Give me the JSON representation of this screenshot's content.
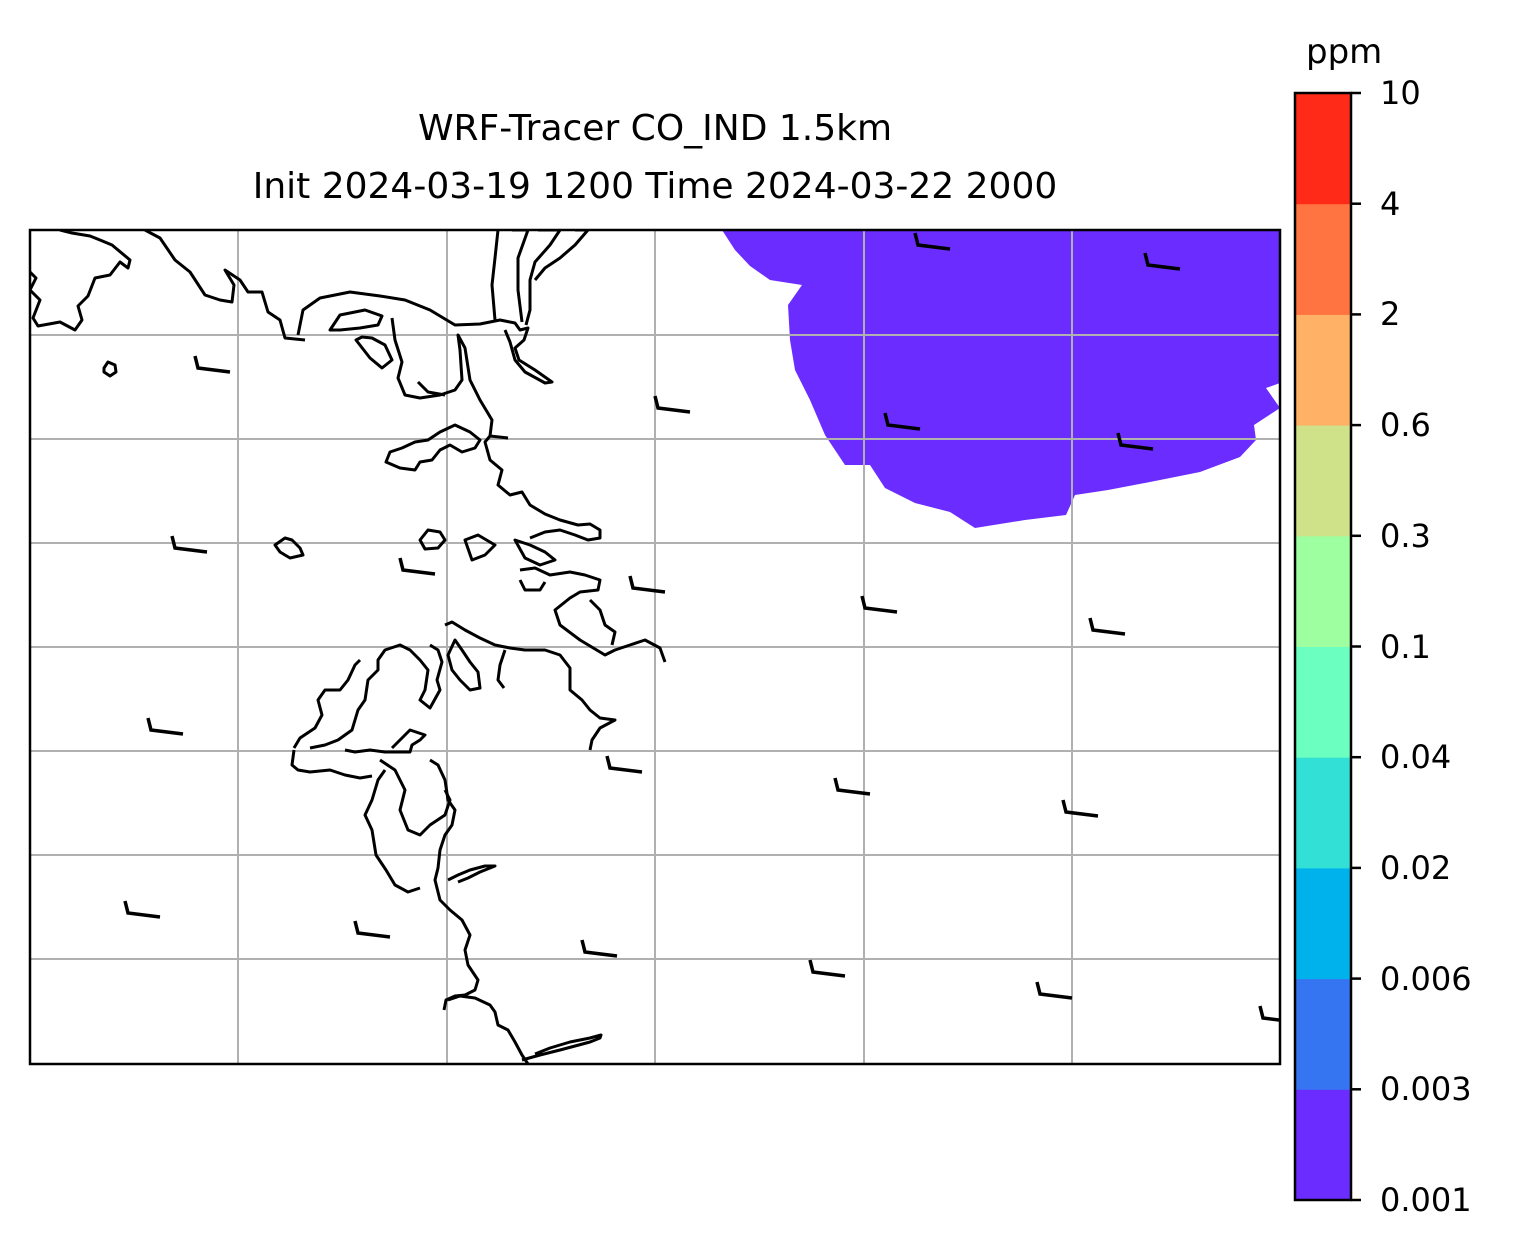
{
  "title": {
    "line1": "WRF-Tracer CO_IND 1.5km",
    "line2": "Init 2024-03-19 1200 Time 2024-03-22 2000"
  },
  "colorbar": {
    "unit_label": "ppm",
    "ticks": [
      "0.001",
      "0.003",
      "0.006",
      "0.02",
      "0.04",
      "0.1",
      "0.3",
      "0.6",
      "2",
      "4",
      "10"
    ],
    "colors": [
      "#6a2cff",
      "#3575f2",
      "#00b2ec",
      "#33e0d6",
      "#6bffc0",
      "#9dff9f",
      "#cfe28a",
      "#ffb265",
      "#ff7440",
      "#ff2a18"
    ]
  },
  "map": {
    "grid": true,
    "fill_color": "#6a2cff",
    "fill_level": "0.001-0.003 ppm",
    "wind_barbs": true
  }
}
